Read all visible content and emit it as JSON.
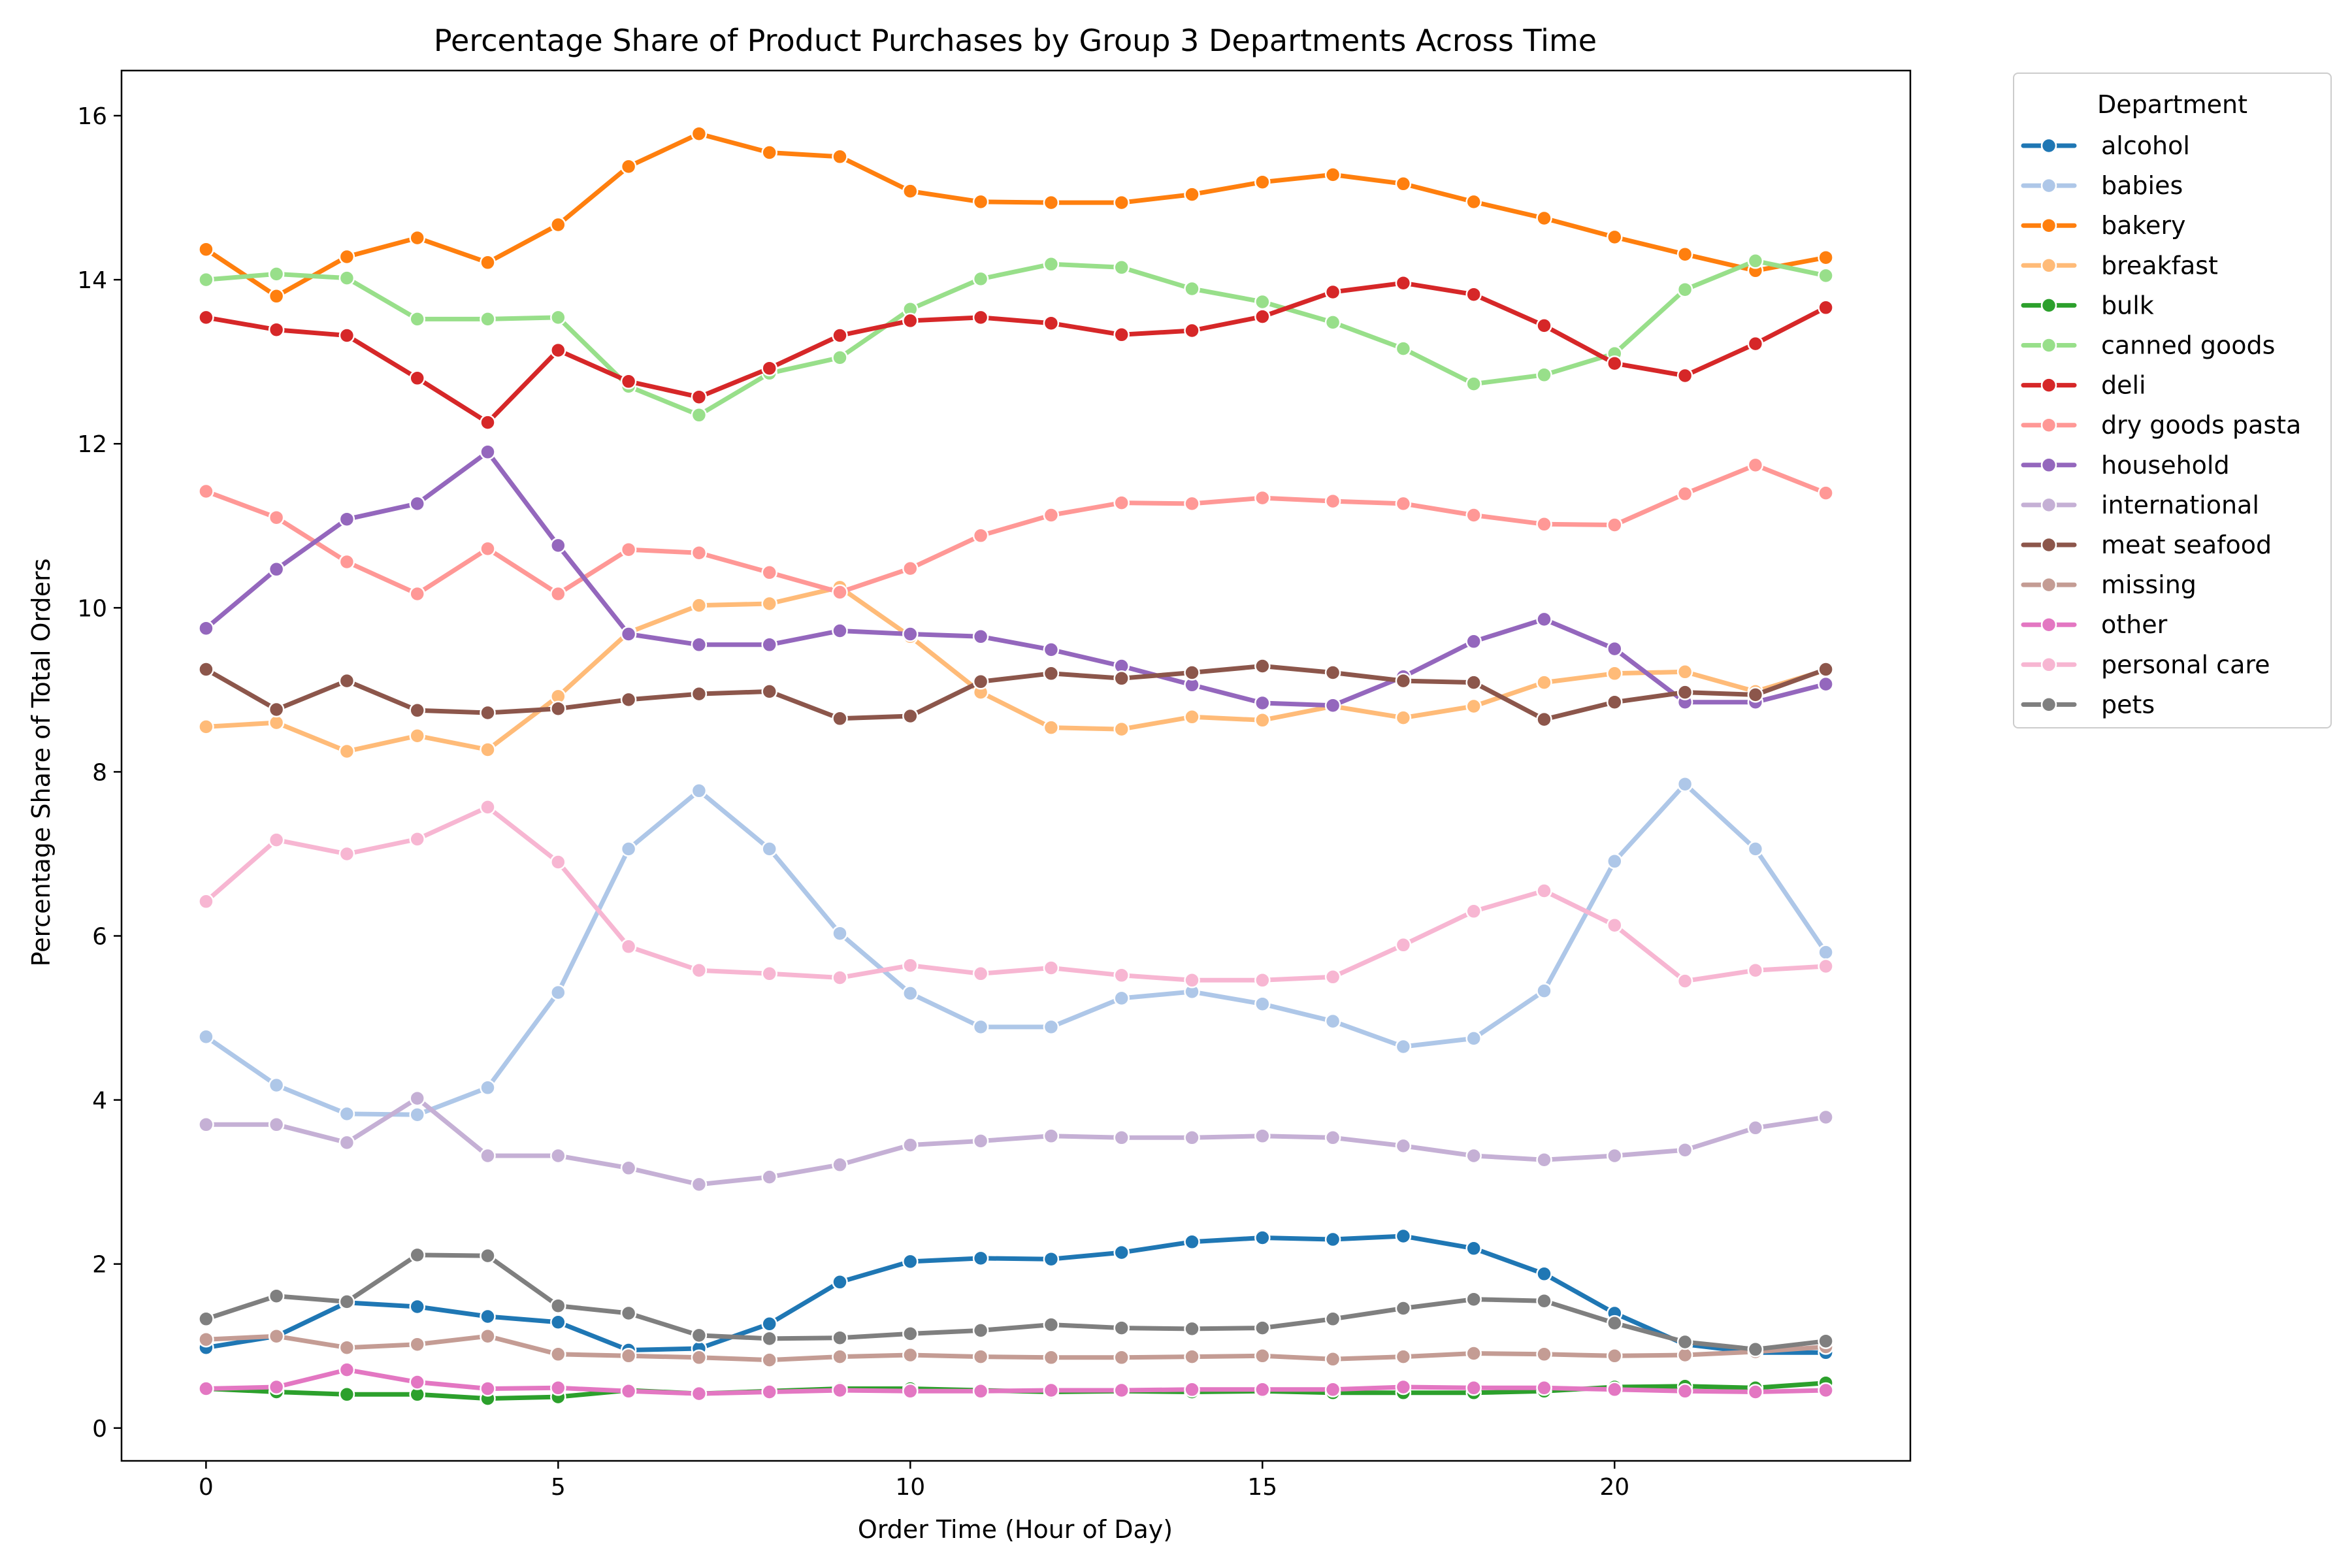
{
  "chart_data": {
    "type": "line",
    "title": "Percentage Share of Product Purchases by Group 3 Departments Across Time",
    "xlabel": "Order Time (Hour of Day)",
    "ylabel": "Percentage Share of Total Orders",
    "xlim": [
      -1.2,
      24.2
    ],
    "ylim": [
      -0.4,
      16.55
    ],
    "xticks": [
      0,
      5,
      10,
      15,
      20
    ],
    "yticks": [
      0,
      2,
      4,
      6,
      8,
      10,
      12,
      14,
      16
    ],
    "grid": false,
    "legend": {
      "title": "Department",
      "placement": "outside-right"
    },
    "x": [
      0,
      1,
      2,
      3,
      4,
      5,
      6,
      7,
      8,
      9,
      10,
      11,
      12,
      13,
      14,
      15,
      16,
      17,
      18,
      19,
      20,
      21,
      22,
      23
    ],
    "series": [
      {
        "name": "alcohol",
        "color": "#1f77b4",
        "values": [
          0.98,
          1.12,
          1.53,
          1.48,
          1.36,
          1.29,
          0.95,
          0.97,
          1.27,
          1.78,
          2.03,
          2.07,
          2.06,
          2.14,
          2.27,
          2.32,
          2.3,
          2.34,
          2.19,
          1.88,
          1.4,
          1.02,
          0.92,
          0.92
        ]
      },
      {
        "name": "babies",
        "color": "#aec7e8",
        "values": [
          4.77,
          4.18,
          3.83,
          3.82,
          4.15,
          5.31,
          7.06,
          7.77,
          7.06,
          6.03,
          5.3,
          4.89,
          4.89,
          5.24,
          5.32,
          5.17,
          4.96,
          4.65,
          4.75,
          5.33,
          6.91,
          7.85,
          7.06,
          5.8
        ]
      },
      {
        "name": "bakery",
        "color": "#ff7f0e",
        "values": [
          14.37,
          13.8,
          14.28,
          14.51,
          14.21,
          14.67,
          15.38,
          15.78,
          15.55,
          15.5,
          15.08,
          14.95,
          14.94,
          14.94,
          15.04,
          15.19,
          15.28,
          15.17,
          14.95,
          14.75,
          14.52,
          14.31,
          14.11,
          14.27
        ]
      },
      {
        "name": "breakfast",
        "color": "#ffbb78",
        "values": [
          8.55,
          8.6,
          8.25,
          8.44,
          8.27,
          8.92,
          9.7,
          10.03,
          10.05,
          10.25,
          9.65,
          8.97,
          8.54,
          8.52,
          8.67,
          8.63,
          8.8,
          8.66,
          8.8,
          9.09,
          9.2,
          9.22,
          8.98,
          9.24
        ]
      },
      {
        "name": "bulk",
        "color": "#2ca02c",
        "values": [
          0.48,
          0.44,
          0.41,
          0.41,
          0.36,
          0.38,
          0.46,
          0.42,
          0.45,
          0.48,
          0.48,
          0.46,
          0.44,
          0.45,
          0.44,
          0.45,
          0.43,
          0.43,
          0.43,
          0.45,
          0.5,
          0.51,
          0.49,
          0.55
        ]
      },
      {
        "name": "canned goods",
        "color": "#98df8a",
        "values": [
          14.0,
          14.07,
          14.02,
          13.52,
          13.52,
          13.54,
          12.7,
          12.35,
          12.86,
          13.05,
          13.64,
          14.01,
          14.19,
          14.15,
          13.89,
          13.73,
          13.48,
          13.16,
          12.73,
          12.84,
          13.1,
          13.88,
          14.23,
          14.05
        ]
      },
      {
        "name": "deli",
        "color": "#d62728",
        "values": [
          13.54,
          13.39,
          13.32,
          12.8,
          12.26,
          13.14,
          12.76,
          12.57,
          12.92,
          13.32,
          13.5,
          13.54,
          13.47,
          13.33,
          13.38,
          13.55,
          13.85,
          13.96,
          13.82,
          13.44,
          12.98,
          12.83,
          13.22,
          13.66
        ]
      },
      {
        "name": "dry goods pasta",
        "color": "#ff9896",
        "values": [
          11.42,
          11.1,
          10.56,
          10.17,
          10.72,
          10.17,
          10.71,
          10.67,
          10.43,
          10.19,
          10.48,
          10.88,
          11.13,
          11.28,
          11.27,
          11.34,
          11.3,
          11.27,
          11.13,
          11.02,
          11.01,
          11.39,
          11.74,
          11.4
        ]
      },
      {
        "name": "household",
        "color": "#9467bd",
        "values": [
          9.75,
          10.47,
          11.08,
          11.27,
          11.9,
          10.76,
          9.68,
          9.55,
          9.55,
          9.72,
          9.68,
          9.65,
          9.49,
          9.29,
          9.06,
          8.84,
          8.81,
          9.16,
          9.59,
          9.86,
          9.5,
          8.85,
          8.85,
          9.07
        ]
      },
      {
        "name": "international",
        "color": "#c5b0d5",
        "values": [
          3.7,
          3.7,
          3.48,
          4.02,
          3.32,
          3.32,
          3.17,
          2.97,
          3.06,
          3.21,
          3.45,
          3.5,
          3.56,
          3.54,
          3.54,
          3.56,
          3.54,
          3.44,
          3.32,
          3.27,
          3.32,
          3.39,
          3.66,
          3.79
        ]
      },
      {
        "name": "meat seafood",
        "color": "#8c564b",
        "values": [
          9.25,
          8.76,
          9.11,
          8.75,
          8.72,
          8.77,
          8.88,
          8.95,
          8.98,
          8.65,
          8.68,
          9.1,
          9.2,
          9.14,
          9.21,
          9.29,
          9.21,
          9.11,
          9.09,
          8.64,
          8.85,
          8.97,
          8.94,
          9.25
        ]
      },
      {
        "name": "missing",
        "color": "#c49c94",
        "values": [
          1.08,
          1.12,
          0.98,
          1.02,
          1.12,
          0.9,
          0.88,
          0.86,
          0.83,
          0.87,
          0.89,
          0.87,
          0.86,
          0.86,
          0.87,
          0.88,
          0.84,
          0.87,
          0.91,
          0.9,
          0.88,
          0.89,
          0.93,
          0.99
        ]
      },
      {
        "name": "other",
        "color": "#e377c2",
        "values": [
          0.48,
          0.5,
          0.71,
          0.56,
          0.48,
          0.49,
          0.45,
          0.42,
          0.44,
          0.46,
          0.45,
          0.45,
          0.46,
          0.46,
          0.47,
          0.47,
          0.47,
          0.5,
          0.49,
          0.49,
          0.47,
          0.45,
          0.44,
          0.46
        ]
      },
      {
        "name": "personal care",
        "color": "#f7b6d2",
        "values": [
          6.42,
          7.17,
          7.0,
          7.18,
          7.57,
          6.9,
          5.87,
          5.58,
          5.54,
          5.49,
          5.64,
          5.54,
          5.61,
          5.52,
          5.46,
          5.46,
          5.5,
          5.89,
          6.3,
          6.55,
          6.13,
          5.45,
          5.58,
          5.63
        ]
      },
      {
        "name": "pets",
        "color": "#7f7f7f",
        "values": [
          1.33,
          1.61,
          1.54,
          2.11,
          2.1,
          1.49,
          1.4,
          1.13,
          1.09,
          1.1,
          1.15,
          1.19,
          1.26,
          1.22,
          1.21,
          1.22,
          1.33,
          1.46,
          1.57,
          1.55,
          1.28,
          1.05,
          0.96,
          1.06
        ]
      }
    ]
  }
}
